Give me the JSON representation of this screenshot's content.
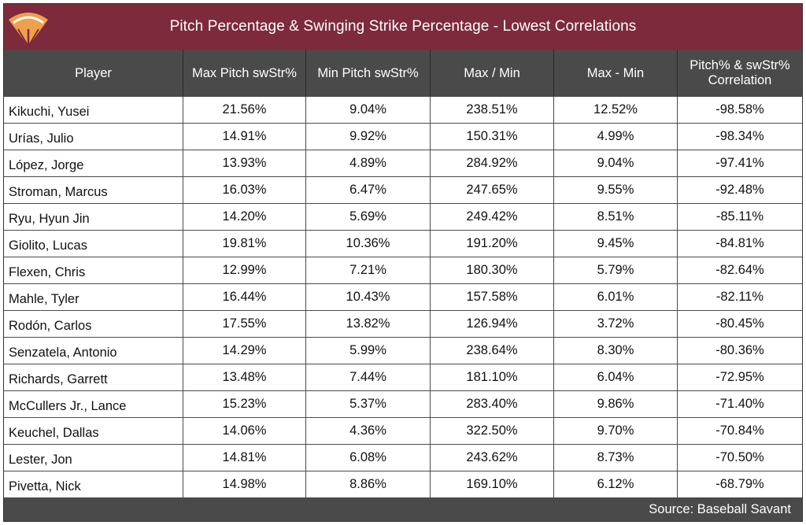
{
  "title": "Pitch Percentage & Swinging Strike Percentage - Lowest Correlations",
  "source": "Source: Baseball Savant",
  "colors": {
    "title_bg": "#7d2a3c",
    "header_bg": "#4a4a4a",
    "logo_orange": "#f0a04b"
  },
  "logo_icon": "baseball-field-icon",
  "chart_data": {
    "type": "table",
    "title": "Pitch Percentage & Swinging Strike Percentage - Lowest Correlations",
    "columns": [
      "Player",
      "Max Pitch swStr%",
      "Min Pitch swStr%",
      "Max / Min",
      "Max - Min",
      "Pitch% & swStr% Correlation"
    ],
    "rows": [
      [
        "Kikuchi, Yusei",
        "21.56%",
        "9.04%",
        "238.51%",
        "12.52%",
        "-98.58%"
      ],
      [
        "Urías, Julio",
        "14.91%",
        "9.92%",
        "150.31%",
        "4.99%",
        "-98.34%"
      ],
      [
        "López, Jorge",
        "13.93%",
        "4.89%",
        "284.92%",
        "9.04%",
        "-97.41%"
      ],
      [
        "Stroman, Marcus",
        "16.03%",
        "6.47%",
        "247.65%",
        "9.55%",
        "-92.48%"
      ],
      [
        "Ryu, Hyun Jin",
        "14.20%",
        "5.69%",
        "249.42%",
        "8.51%",
        "-85.11%"
      ],
      [
        "Giolito, Lucas",
        "19.81%",
        "10.36%",
        "191.20%",
        "9.45%",
        "-84.81%"
      ],
      [
        "Flexen, Chris",
        "12.99%",
        "7.21%",
        "180.30%",
        "5.79%",
        "-82.64%"
      ],
      [
        "Mahle, Tyler",
        "16.44%",
        "10.43%",
        "157.58%",
        "6.01%",
        "-82.11%"
      ],
      [
        "Rodón, Carlos",
        "17.55%",
        "13.82%",
        "126.94%",
        "3.72%",
        "-80.45%"
      ],
      [
        "Senzatela, Antonio",
        "14.29%",
        "5.99%",
        "238.64%",
        "8.30%",
        "-80.36%"
      ],
      [
        "Richards, Garrett",
        "13.48%",
        "7.44%",
        "181.10%",
        "6.04%",
        "-72.95%"
      ],
      [
        "McCullers Jr., Lance",
        "15.23%",
        "5.37%",
        "283.40%",
        "9.86%",
        "-71.40%"
      ],
      [
        "Keuchel, Dallas",
        "14.06%",
        "4.36%",
        "322.50%",
        "9.70%",
        "-70.84%"
      ],
      [
        "Lester, Jon",
        "14.81%",
        "6.08%",
        "243.62%",
        "8.73%",
        "-70.50%"
      ],
      [
        "Pivetta, Nick",
        "14.98%",
        "8.86%",
        "169.10%",
        "6.12%",
        "-68.79%"
      ]
    ]
  }
}
